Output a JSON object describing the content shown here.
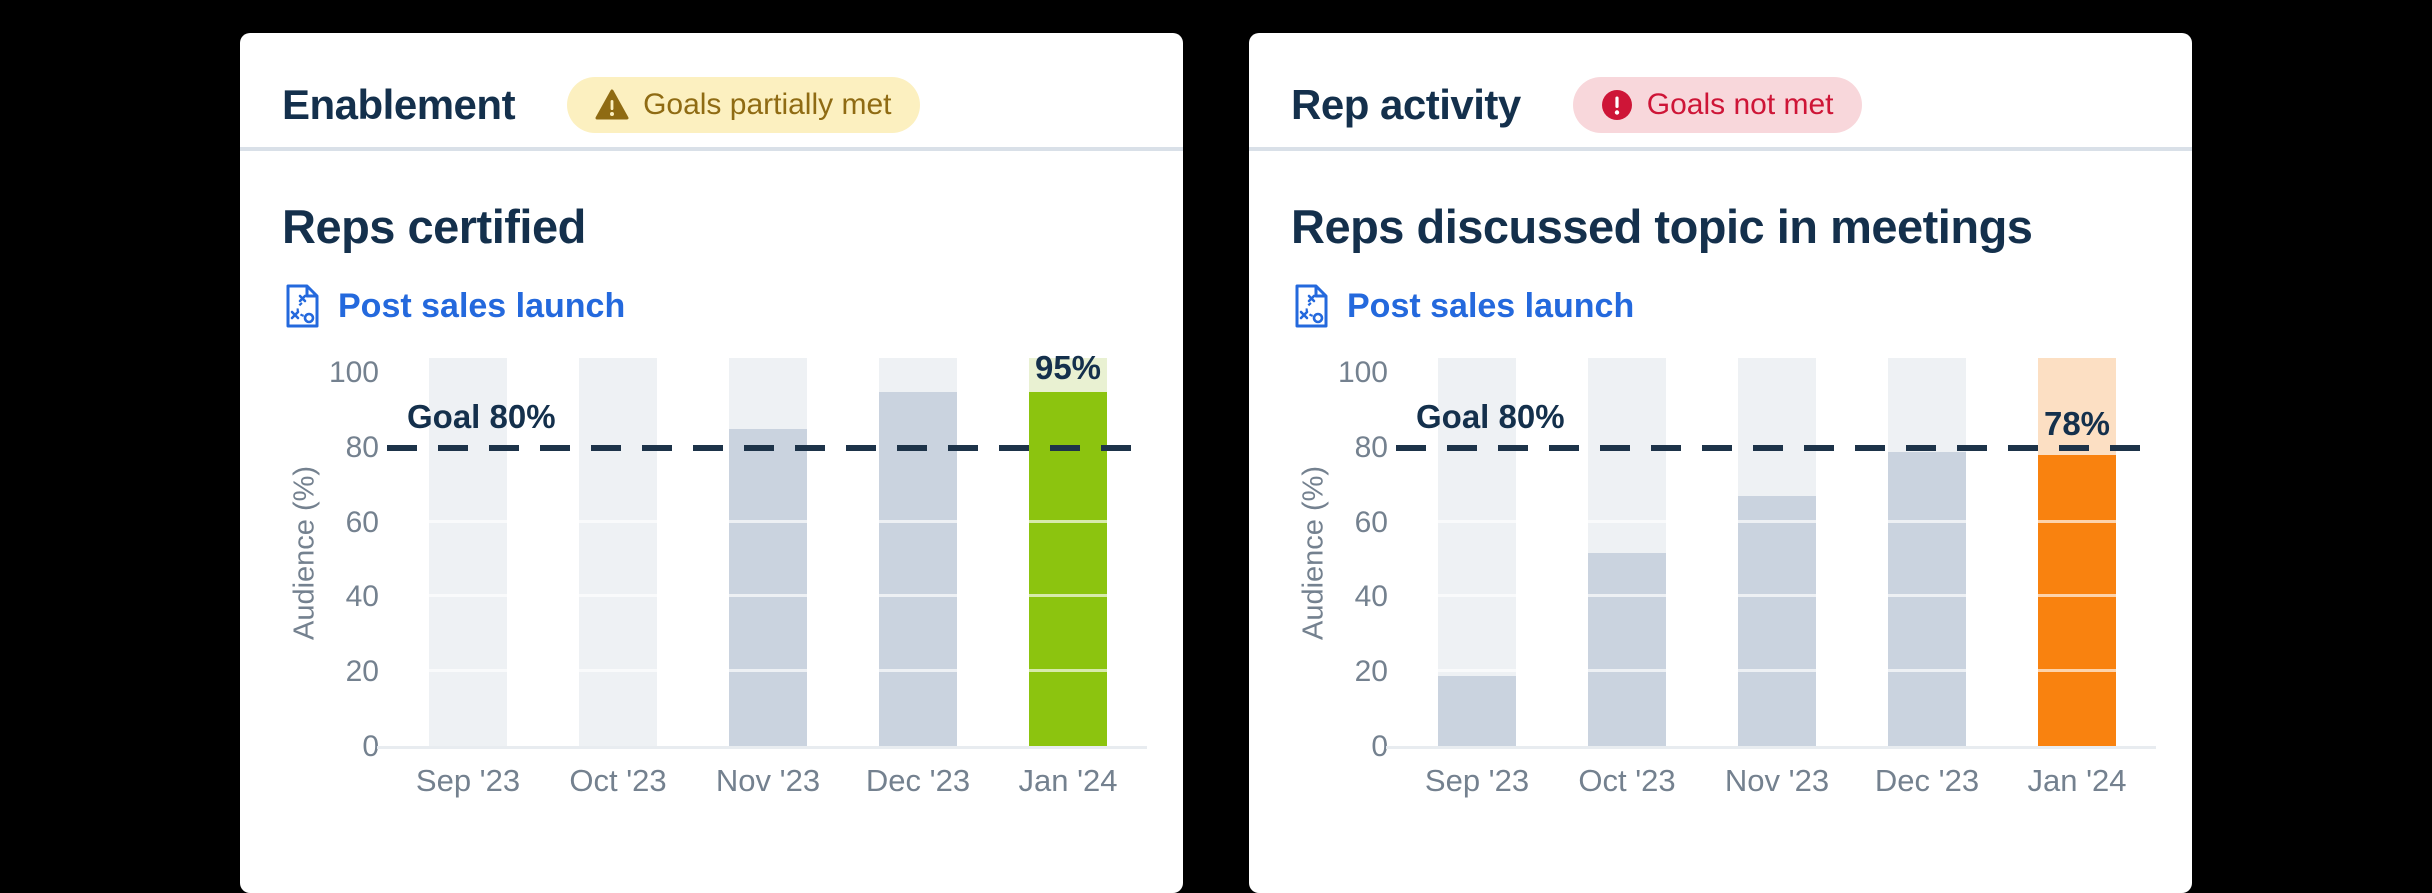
{
  "page": {
    "background": "#000000"
  },
  "colors": {
    "card_bg": "#ffffff",
    "title_navy": "#14304c",
    "divider": "#d9e0e8",
    "axis_text": "#74818f",
    "goal_line": "#1d3349",
    "link_blue": "#2469dd",
    "warning_bg": "#fcf0c0",
    "warning_fg": "#8f6b13",
    "error_bg": "#f8d7db",
    "error_fg": "#ce1537",
    "bar_gray": "#cad3df",
    "track_gray": "#eef1f4",
    "green": "#8cc40f",
    "green_track": "#e9f1d2",
    "orange": "#f9820f",
    "orange_track": "#fcdfc3"
  },
  "cards": [
    {
      "title": "Enablement",
      "badge": {
        "label": "Goals partially met",
        "status": "warning",
        "bg": "#fcf0c0",
        "color": "#8f6b13",
        "icon": "warning-triangle-icon"
      },
      "link": {
        "label": "Post sales launch",
        "color": "#2469dd",
        "icon": "playbook-icon"
      },
      "chart_data": {
        "type": "bar",
        "title": "Reps certified",
        "categories": [
          "Sep '23",
          "Oct '23",
          "Nov '23",
          "Dec '23",
          "Jan '24"
        ],
        "values": [
          0,
          0,
          85,
          95,
          95
        ],
        "ylabel": "Audience (%)",
        "yticks": [
          0,
          20,
          40,
          60,
          80,
          100
        ],
        "ylim": [
          0,
          104
        ],
        "grid": [
          20,
          40,
          60
        ],
        "legend": "none",
        "goal": {
          "value": 80,
          "label": "Goal 80%"
        },
        "bar_color": "#cad3df",
        "track_color": "#eef1f4",
        "highlight": {
          "index": 4,
          "label": "95%",
          "bar_color": "#8cc40f",
          "track_color": "#e9f1d2"
        }
      }
    },
    {
      "title": "Rep activity",
      "badge": {
        "label": "Goals not met",
        "status": "error",
        "bg": "#f8d7db",
        "color": "#ce1537",
        "icon": "error-circle-icon"
      },
      "link": {
        "label": "Post sales launch",
        "color": "#2469dd",
        "icon": "playbook-icon"
      },
      "chart_data": {
        "type": "bar",
        "title": "Reps discussed topic in meetings",
        "categories": [
          "Sep '23",
          "Oct '23",
          "Nov '23",
          "Dec '23",
          "Jan '24"
        ],
        "values": [
          19,
          52,
          67,
          79,
          78
        ],
        "ylabel": "Audience (%)",
        "yticks": [
          0,
          20,
          40,
          60,
          80,
          100
        ],
        "ylim": [
          0,
          104
        ],
        "grid": [
          20,
          40,
          60
        ],
        "legend": "none",
        "goal": {
          "value": 80,
          "label": "Goal 80%"
        },
        "bar_color": "#cad3df",
        "track_color": "#eef1f4",
        "highlight": {
          "index": 4,
          "label": "78%",
          "bar_color": "#f9820f",
          "track_color": "#fcdfc3"
        }
      }
    }
  ]
}
